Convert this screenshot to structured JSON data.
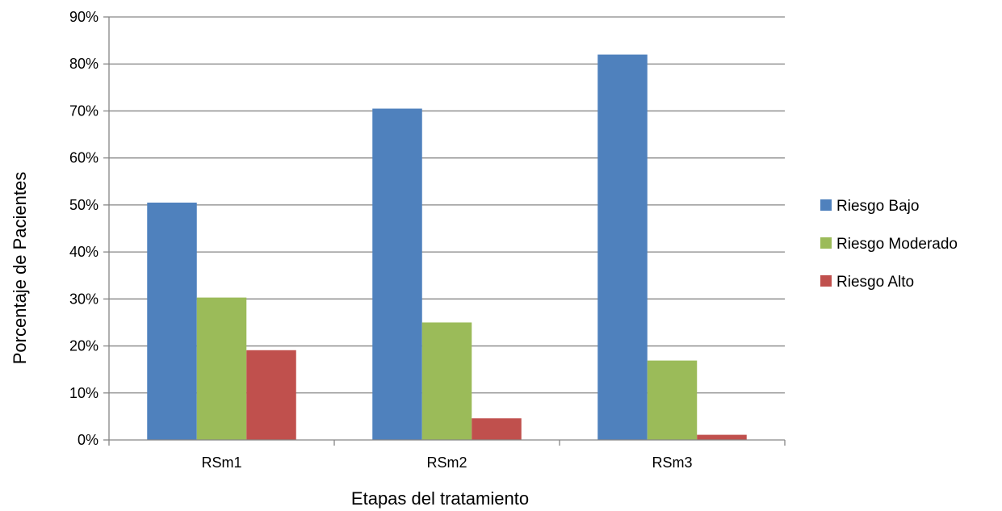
{
  "chart_data": {
    "type": "bar",
    "categories": [
      "RSm1",
      "RSm2",
      "RSm3"
    ],
    "series": [
      {
        "name": "Riesgo Bajo",
        "color": "#4f81bd",
        "values": [
          50.5,
          70.5,
          82.0
        ]
      },
      {
        "name": "Riesgo Moderado",
        "color": "#9bbb59",
        "values": [
          30.3,
          25.0,
          16.9
        ]
      },
      {
        "name": "Riesgo Alto",
        "color": "#c0504d",
        "values": [
          19.1,
          4.6,
          1.1
        ]
      }
    ],
    "xlabel": "Etapas del tratamiento",
    "ylabel": "Porcentaje de Pacientes",
    "ylim": [
      0,
      90
    ],
    "yticks": [
      0,
      10,
      20,
      30,
      40,
      50,
      60,
      70,
      80,
      90
    ],
    "ytick_format": "%",
    "grid": true,
    "legend_position": "right"
  }
}
